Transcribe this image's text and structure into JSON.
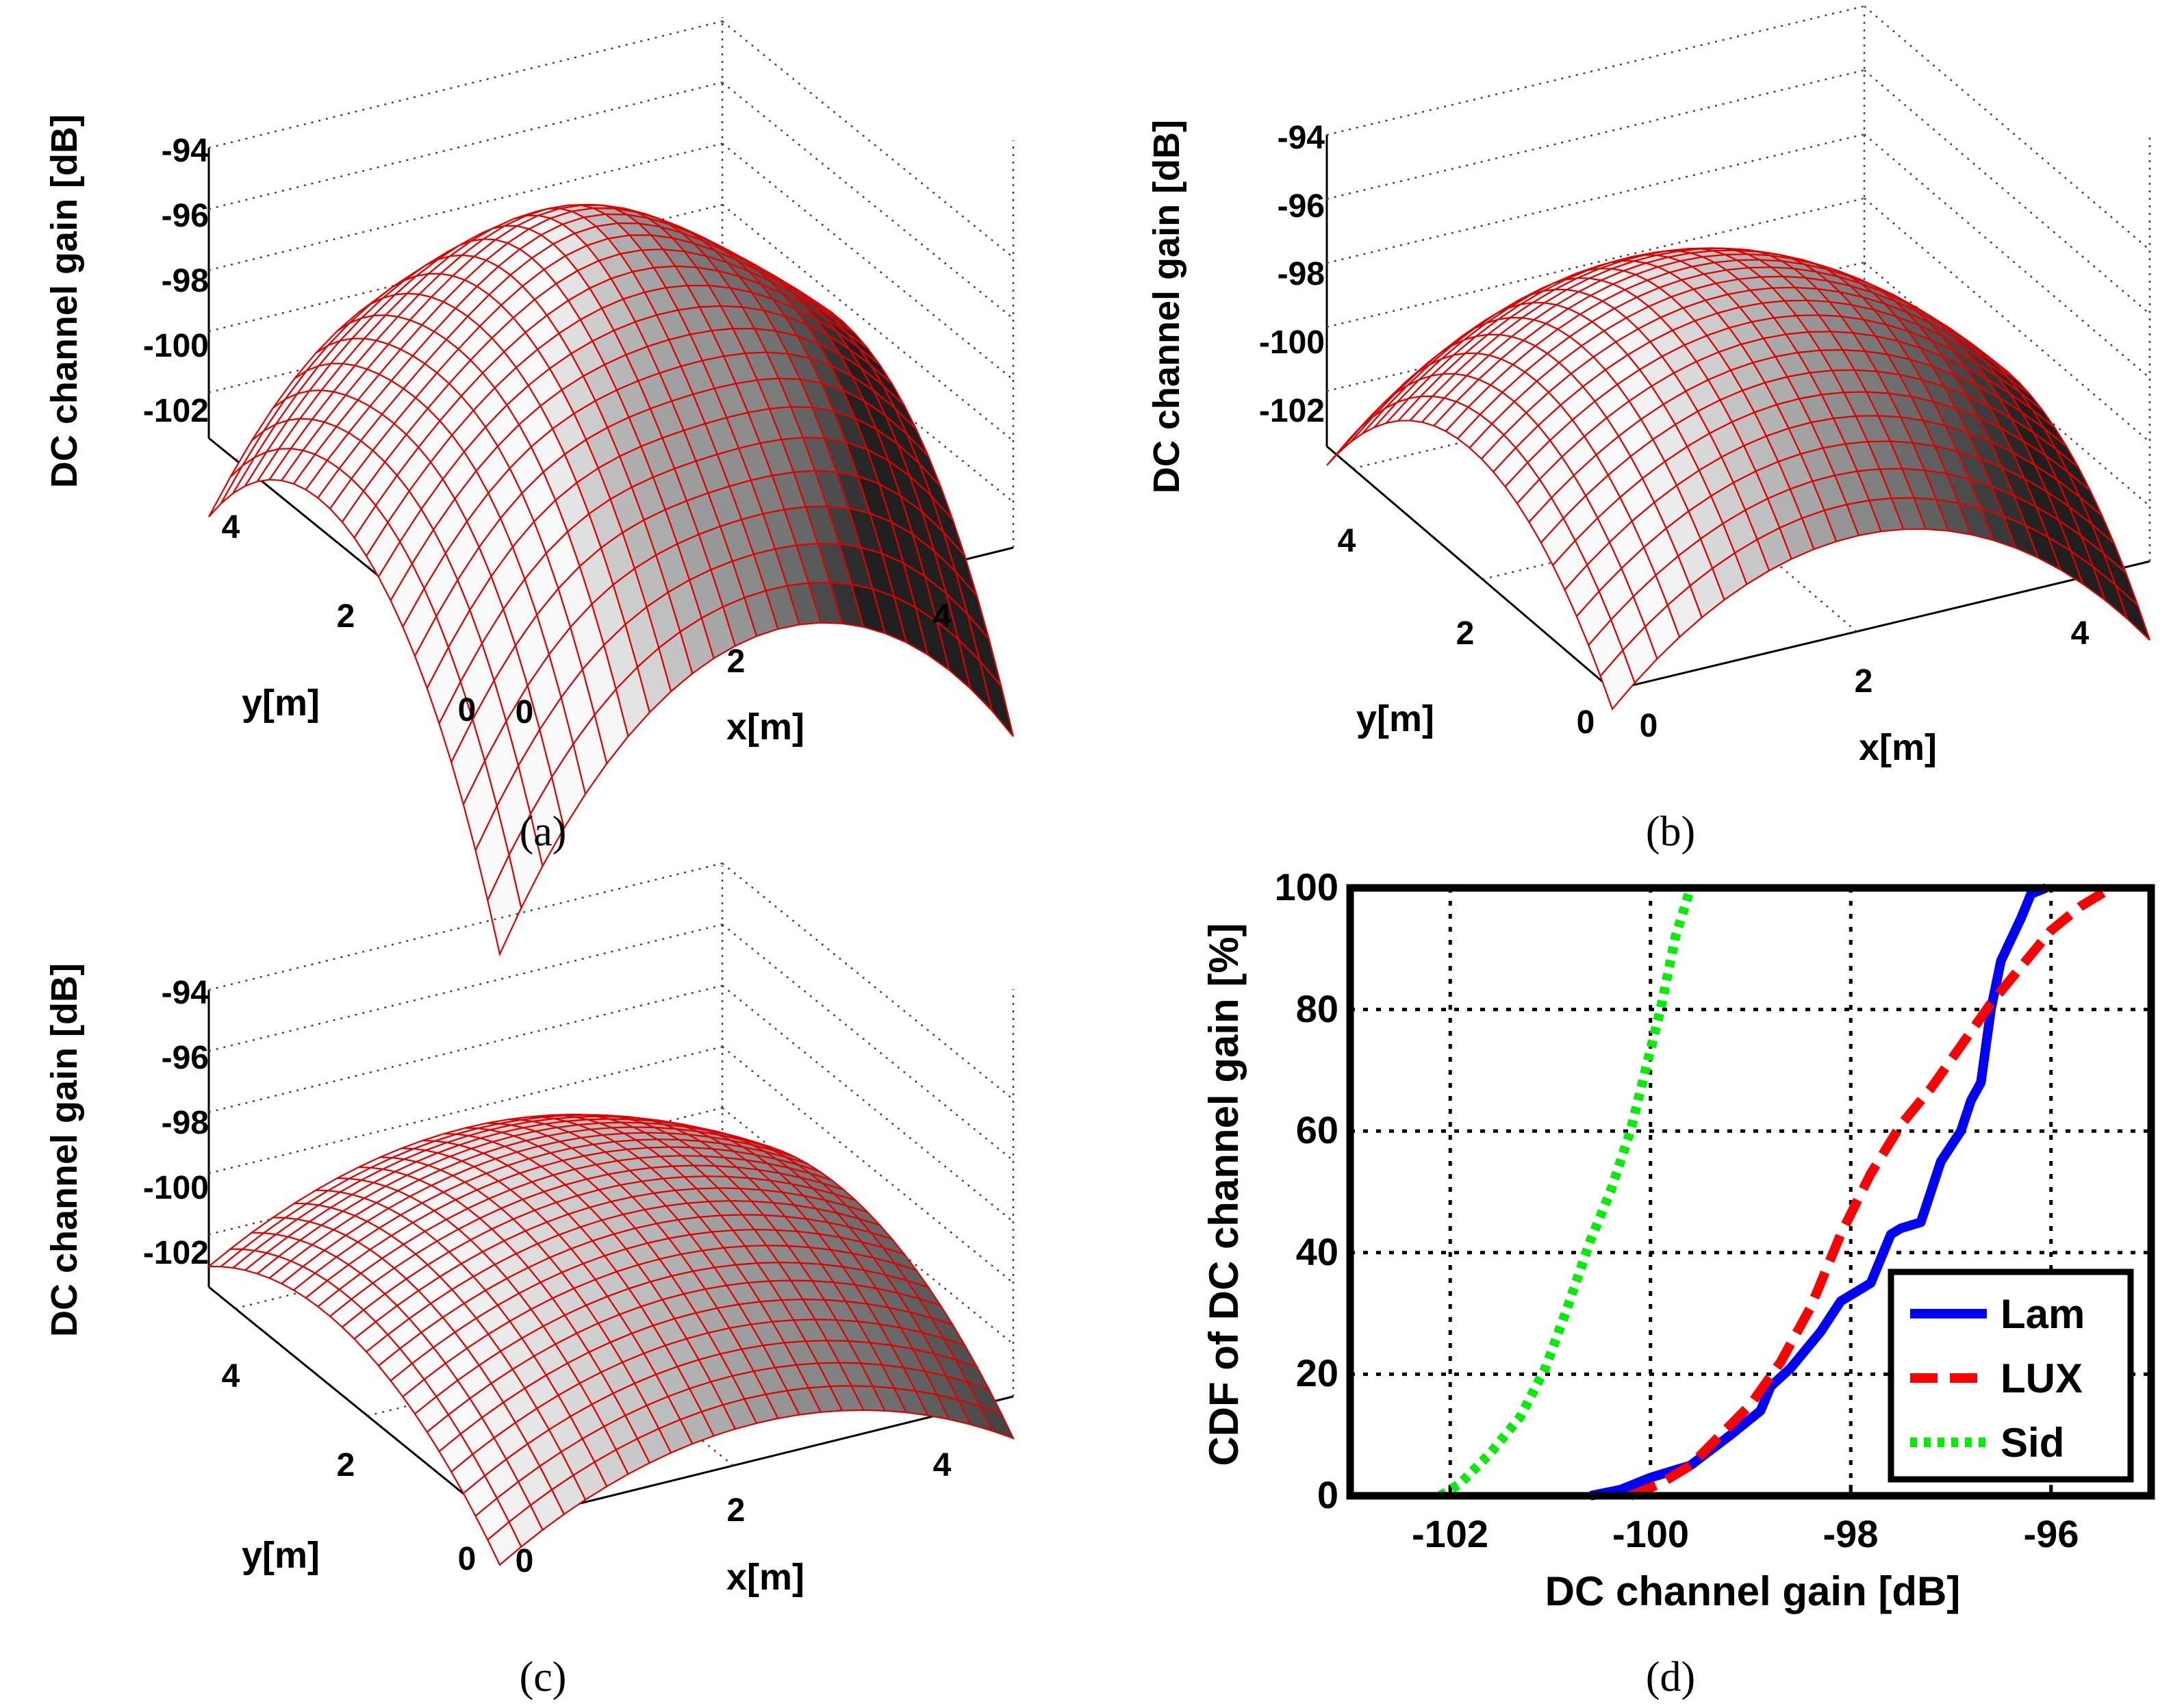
{
  "chart_data": [
    {
      "id": "a",
      "type": "surface",
      "caption": "(a)",
      "zlabel": "DC channel gain [dB]",
      "xlabel": "x[m]",
      "ylabel": "y[m]",
      "zticks": [
        "-94",
        "-96",
        "-98",
        "-100",
        "-102"
      ],
      "xticks": [
        "0",
        "2",
        "4"
      ],
      "yticks": [
        "0",
        "2",
        "4"
      ],
      "surface_range_db": [
        -103.5,
        -96.2
      ],
      "grid": true
    },
    {
      "id": "b",
      "type": "surface",
      "caption": "(b)",
      "zlabel": "DC channel gain [dB]",
      "xlabel": "x[m]",
      "ylabel": "y[m]",
      "zticks": [
        "-94",
        "-96",
        "-98",
        "-100",
        "-102"
      ],
      "xticks": [
        "0",
        "2",
        "4"
      ],
      "yticks": [
        "0",
        "2",
        "4"
      ],
      "surface_range_db": [
        -103.0,
        -96.4
      ],
      "grid": true
    },
    {
      "id": "c",
      "type": "surface",
      "caption": "(c)",
      "zlabel": "DC channel gain [dB]",
      "xlabel": "x[m]",
      "ylabel": "y[m]",
      "zticks": [
        "-94",
        "-96",
        "-98",
        "-100",
        "-102"
      ],
      "xticks": [
        "0",
        "2",
        "4"
      ],
      "yticks": [
        "0",
        "2",
        "4"
      ],
      "surface_range_db": [
        -103.5,
        -99.0
      ],
      "grid": true
    },
    {
      "id": "d",
      "type": "line",
      "caption": "(d)",
      "xlabel": "DC channel gain [dB]",
      "ylabel": "CDF of DC channel gain [%]",
      "xlim": [
        -103,
        -95
      ],
      "ylim": [
        0,
        100
      ],
      "xticks": [
        -102,
        -100,
        -98,
        -96
      ],
      "xtick_labels": [
        "-102",
        "-100",
        "-98",
        "-96"
      ],
      "yticks": [
        0,
        20,
        40,
        60,
        80,
        100
      ],
      "ytick_labels": [
        "0",
        "20",
        "40",
        "60",
        "80",
        "100"
      ],
      "grid": true,
      "legend_position": "bottom-right",
      "series": [
        {
          "name": "Lam",
          "color": "#0000ff",
          "style": "solid",
          "x": [
            -100.6,
            -100.3,
            -100.0,
            -99.6,
            -99.2,
            -98.9,
            -98.8,
            -98.6,
            -98.3,
            -98.1,
            -97.9,
            -97.8,
            -97.7,
            -97.6,
            -97.5,
            -97.3,
            -97.1,
            -96.9,
            -96.8,
            -96.7,
            -96.6,
            -96.5,
            -96.3,
            -96.2,
            -96.05
          ],
          "y": [
            0,
            1,
            3,
            5,
            10,
            14,
            18,
            21,
            27,
            32,
            34,
            35,
            39,
            43,
            44,
            45,
            55,
            60,
            65,
            68,
            80,
            88,
            95,
            99,
            100
          ]
        },
        {
          "name": "LUX",
          "color": "#ff0000",
          "style": "dashed",
          "x": [
            -100.2,
            -99.9,
            -99.6,
            -99.3,
            -99.0,
            -98.7,
            -98.4,
            -98.1,
            -97.8,
            -97.5,
            -97.2,
            -96.9,
            -96.6,
            -96.3,
            -96.0,
            -95.7,
            -95.4
          ],
          "y": [
            0,
            2,
            5,
            10,
            15,
            22,
            31,
            43,
            53,
            61,
            67,
            74,
            81,
            87,
            93,
            97,
            100
          ]
        },
        {
          "name": "Sid",
          "color": "#00ee00",
          "style": "dotted",
          "x": [
            -102.1,
            -101.9,
            -101.6,
            -101.3,
            -101.05,
            -100.85,
            -100.6,
            -100.4,
            -100.2,
            -100.05,
            -99.9,
            -99.75,
            -99.6
          ],
          "y": [
            0,
            2,
            7,
            13,
            21,
            30,
            42,
            50,
            60,
            70,
            80,
            92,
            100
          ]
        }
      ]
    }
  ]
}
